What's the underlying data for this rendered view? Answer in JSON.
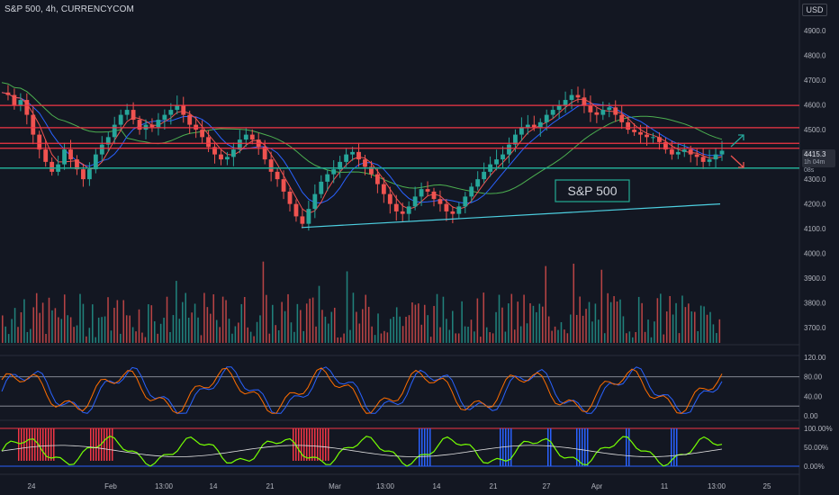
{
  "header": {
    "symbol_title": "S&P 500, 4h, CURRENCYCOM",
    "currency": "USD"
  },
  "price_axis": {
    "ticks": [
      "4900.0",
      "4800.0",
      "4700.0",
      "4600.0",
      "4500.0",
      "4400.0",
      "4300.0",
      "4200.0",
      "4100.0",
      "4000.0",
      "3900.0",
      "3800.0",
      "3700.0"
    ],
    "last_price": "4415.3",
    "last_price_sub": "1h 04m 08s"
  },
  "annotation": {
    "label": "S&P 500"
  },
  "stoch_axis": {
    "ticks": [
      "120.00",
      "80.00",
      "40.00",
      "0.00"
    ]
  },
  "osc_axis": {
    "ticks": [
      "100.00%",
      "50.00%",
      "0.00%"
    ]
  },
  "time_axis": {
    "ticks": [
      "24",
      "Feb",
      "13:00",
      "14",
      "21",
      "Mar",
      "13:00",
      "14",
      "21",
      "27",
      "Apr",
      "11",
      "13:00",
      "25"
    ]
  },
  "colors": {
    "background": "#131722",
    "up": "#26a69a",
    "down": "#ef5350",
    "resistance": "#f23645",
    "support": "#22ab94",
    "trendline": "#4dd0e1",
    "ma_fast": "#ef5350",
    "ma_mid": "#2962ff",
    "ma_slow": "#4caf50",
    "stoch_k": "#2962ff",
    "stoch_d": "#ff6d00"
  },
  "chart_data": {
    "type": "candlestick",
    "symbol": "S&P 500",
    "interval": "4h",
    "ylim": [
      3650,
      4980
    ],
    "horizontal_levels": {
      "resistance": [
        4598,
        4508,
        4445,
        4425
      ],
      "support": [
        4345
      ]
    },
    "trendline": {
      "from": 4105,
      "to": 4200
    },
    "close_path": [
      4650,
      4640,
      4600,
      4620,
      4560,
      4480,
      4420,
      4370,
      4330,
      4360,
      4420,
      4380,
      4340,
      4300,
      4340,
      4400,
      4440,
      4470,
      4520,
      4560,
      4580,
      4540,
      4500,
      4520,
      4510,
      4540,
      4560,
      4580,
      4600,
      4560,
      4520,
      4500,
      4470,
      4430,
      4400,
      4380,
      4390,
      4420,
      4460,
      4480,
      4460,
      4430,
      4380,
      4330,
      4300,
      4250,
      4200,
      4150,
      4120,
      4180,
      4240,
      4290,
      4320,
      4340,
      4370,
      4400,
      4410,
      4380,
      4350,
      4320,
      4280,
      4240,
      4200,
      4170,
      4160,
      4190,
      4230,
      4260,
      4250,
      4220,
      4200,
      4170,
      4160,
      4190,
      4230,
      4270,
      4300,
      4330,
      4360,
      4380,
      4400,
      4440,
      4480,
      4510,
      4520,
      4510,
      4530,
      4560,
      4580,
      4600,
      4620,
      4640,
      4630,
      4600,
      4570,
      4560,
      4580,
      4590,
      4560,
      4530,
      4500,
      4490,
      4480,
      4470,
      4470,
      4450,
      4420,
      4400,
      4410,
      4420,
      4400,
      4390,
      4370,
      4380,
      4400,
      4415
    ],
    "volume_max": 4000,
    "stoch_levels": [
      80,
      20
    ],
    "osc_levels": [
      100,
      0
    ]
  }
}
